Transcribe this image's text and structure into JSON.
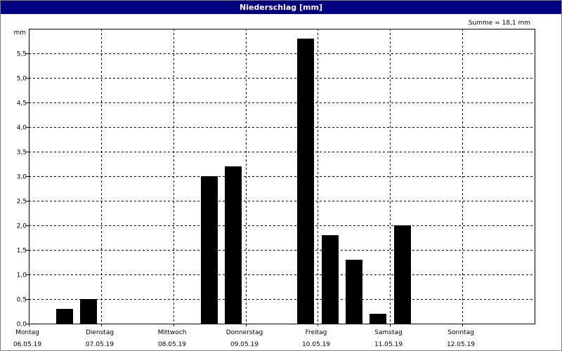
{
  "window": {
    "title": "Niederschlag [mm]"
  },
  "chart_data": {
    "type": "bar",
    "title": "Niederschlag [mm]",
    "annotation": "Summe = 18,1 mm",
    "ylabel": "mm",
    "ylim": [
      0,
      6.0
    ],
    "y_ticks": [
      "0,0",
      "0,5",
      "1,0",
      "1,5",
      "2,0",
      "2,5",
      "3,0",
      "3,5",
      "4,0",
      "4,5",
      "5,0",
      "5,5"
    ],
    "xlim_days": [
      0,
      7
    ],
    "x_ticks": [
      {
        "day": "Montag",
        "date": "06.05.19"
      },
      {
        "day": "Dienstag",
        "date": "07.05.19"
      },
      {
        "day": "Mittwoch",
        "date": "08.05.19"
      },
      {
        "day": "Donnerstag",
        "date": "09.05.19"
      },
      {
        "day": "Freitag",
        "date": "10.05.19"
      },
      {
        "day": "Samstag",
        "date": "11.05.19"
      },
      {
        "day": "Sonntag",
        "date": "12.05.19"
      }
    ],
    "bars": [
      {
        "x": 0.5,
        "value": 0.3
      },
      {
        "x": 0.83,
        "value": 0.5
      },
      {
        "x": 2.5,
        "value": 3.0
      },
      {
        "x": 2.83,
        "value": 3.2
      },
      {
        "x": 3.83,
        "value": 5.8
      },
      {
        "x": 4.17,
        "value": 1.8
      },
      {
        "x": 4.5,
        "value": 1.3
      },
      {
        "x": 4.83,
        "value": 0.2
      },
      {
        "x": 5.17,
        "value": 2.0
      }
    ],
    "grid": true,
    "colors": {
      "bar": "#000000",
      "title_bar": "#000080",
      "background": "#ffffff"
    }
  }
}
